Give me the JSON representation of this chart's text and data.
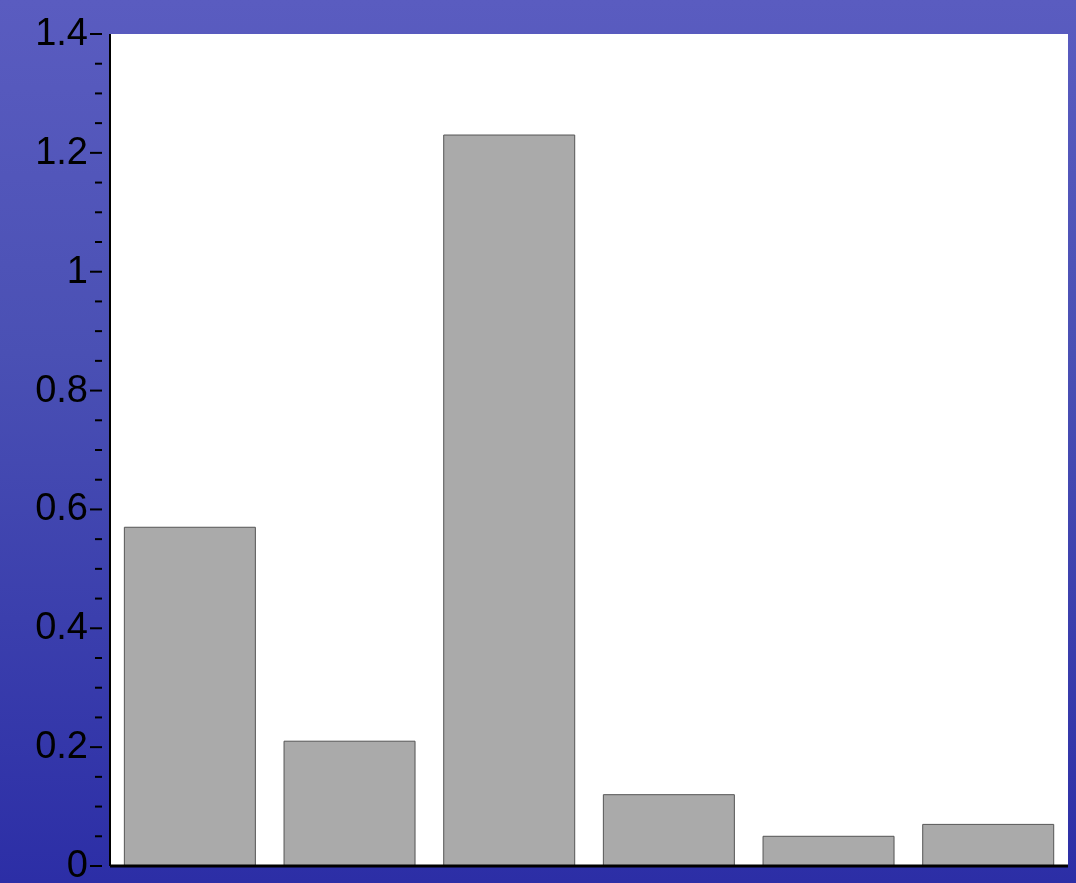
{
  "chart_data": {
    "type": "bar",
    "categories": [
      null,
      null,
      null,
      null,
      null,
      null
    ],
    "values": [
      0.57,
      0.21,
      1.23,
      0.12,
      0.05,
      0.07
    ],
    "color": "#aaaaaa",
    "ylim": [
      0,
      1.4
    ],
    "yticks": [
      0,
      {
        "value": 0.05,
        "label": null
      },
      {
        "value": 0.1,
        "label": null
      },
      {
        "value": 0.15,
        "label": null
      },
      0.2,
      {
        "value": 0.25,
        "label": null
      },
      {
        "value": 0.3,
        "label": null
      },
      {
        "value": 0.35,
        "label": null
      },
      0.4,
      {
        "value": 0.45,
        "label": null
      },
      {
        "value": 0.5,
        "label": null
      },
      {
        "value": 0.55,
        "label": null
      },
      0.6,
      {
        "value": 0.65,
        "label": null
      },
      {
        "value": 0.7,
        "label": null
      },
      {
        "value": 0.75,
        "label": null
      },
      0.8,
      {
        "value": 0.85,
        "label": null
      },
      {
        "value": 0.9,
        "label": null
      },
      {
        "value": 0.95,
        "label": null
      },
      1,
      {
        "value": 1.05,
        "label": null
      },
      {
        "value": 1.1,
        "label": null
      },
      {
        "value": 1.15,
        "label": null
      },
      1.2,
      {
        "value": 1.25,
        "label": null
      },
      {
        "value": 1.3,
        "label": null
      },
      {
        "value": 1.35,
        "label": null
      },
      1.4
    ],
    "grid": false,
    "legend": false
  }
}
